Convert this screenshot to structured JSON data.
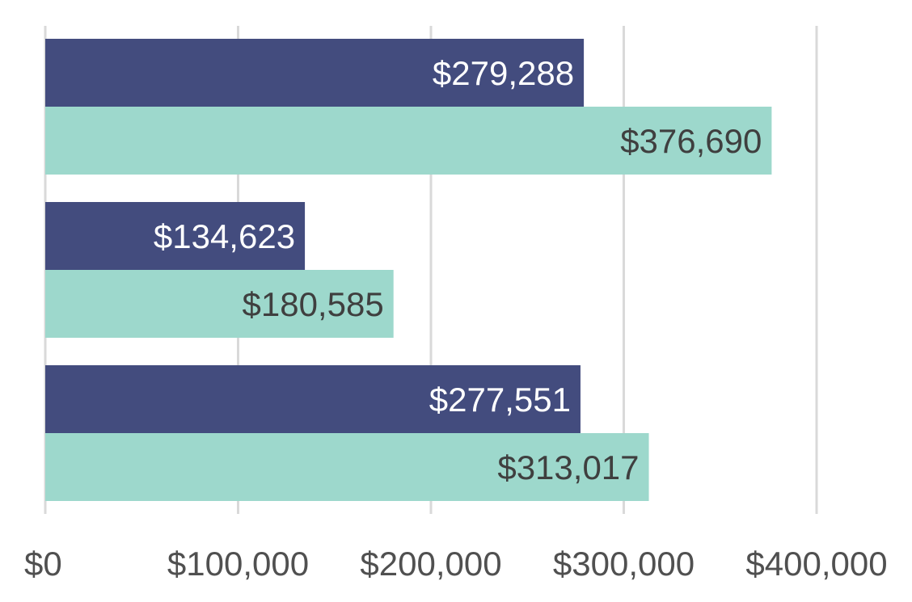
{
  "chart_data": {
    "type": "bar",
    "orientation": "horizontal",
    "categories": [
      "",
      "",
      ""
    ],
    "series": [
      {
        "name": "",
        "color": "#434C7E",
        "values": [
          279288,
          134623,
          277551
        ],
        "labels": [
          "$279,288",
          "$134,623",
          "$277,551"
        ]
      },
      {
        "name": "",
        "color": "#9DD8CC",
        "values": [
          376690,
          180585,
          313017
        ],
        "labels": [
          "$376,690",
          "$180,585",
          "$313,017"
        ]
      }
    ],
    "xlim": [
      0,
      400000
    ],
    "xticks": [
      0,
      100000,
      200000,
      300000,
      400000
    ],
    "xtick_labels": [
      "$0",
      "$100,000",
      "$200,000",
      "$300,000",
      "$400,000"
    ],
    "grid": true,
    "title": "",
    "xlabel": "",
    "ylabel": ""
  },
  "colors": {
    "grid": "#D9D9D9",
    "axis_text": "#505050",
    "label_on_dark": "#FFFFFF",
    "label_on_light": "#3F3F3F"
  }
}
